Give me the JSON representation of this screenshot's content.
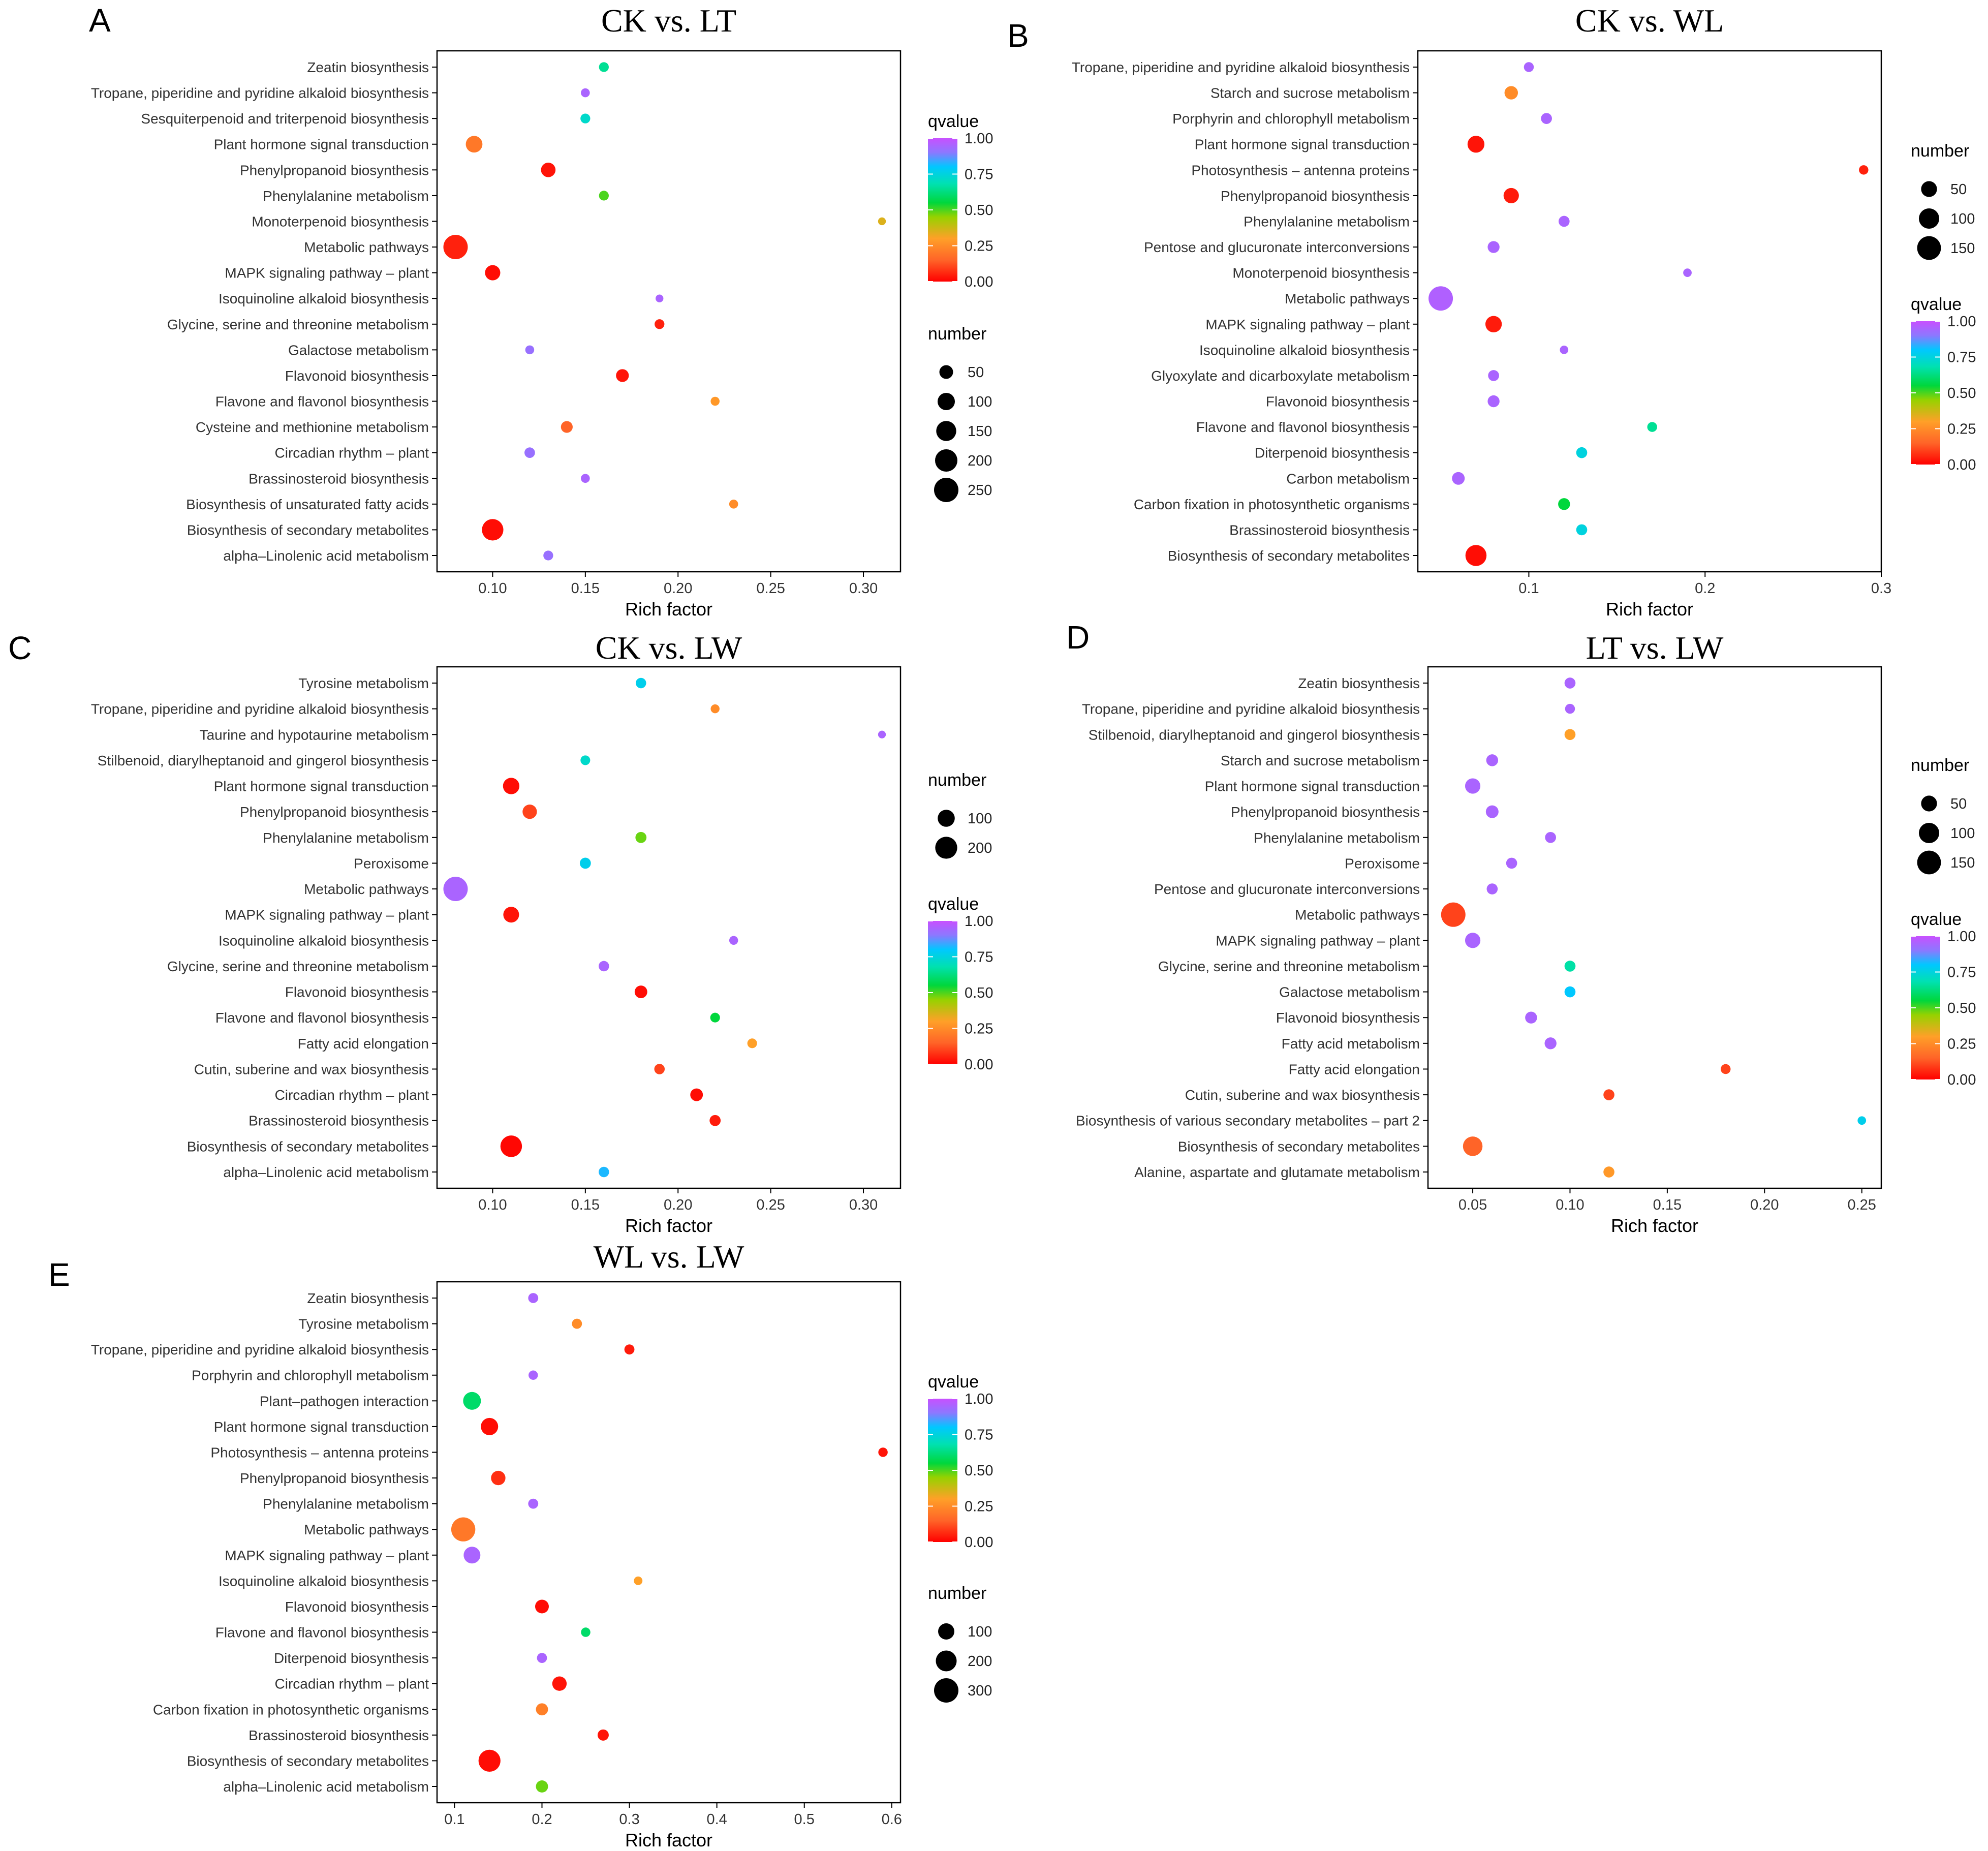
{
  "chart_data": [
    {
      "panel": "A",
      "title": "CK vs. LT",
      "type": "scatter",
      "xlabel": "Rich factor",
      "xlim": [
        0.07,
        0.32
      ],
      "xticks": [
        "0.10",
        "0.15",
        "0.20",
        "0.25",
        "0.30"
      ],
      "xtick_values": [
        0.1,
        0.15,
        0.2,
        0.25,
        0.3
      ],
      "categories": [
        "Zeatin biosynthesis",
        "Tropane, piperidine and pyridine alkaloid biosynthesis",
        "Sesquiterpenoid and triterpenoid biosynthesis",
        "Plant hormone signal transduction",
        "Phenylpropanoid biosynthesis",
        "Phenylalanine metabolism",
        "Monoterpenoid biosynthesis",
        "Metabolic pathways",
        "MAPK signaling pathway – plant",
        "Isoquinoline alkaloid biosynthesis",
        "Glycine, serine and threonine metabolism",
        "Galactose metabolism",
        "Flavonoid biosynthesis",
        "Flavone and flavonol biosynthesis",
        "Cysteine and methionine metabolism",
        "Circadian rhythm – plant",
        "Brassinosteroid biosynthesis",
        "Biosynthesis of unsaturated fatty acids",
        "Biosynthesis of secondary metabolites",
        "alpha–Linolenic acid metabolism"
      ],
      "points": [
        {
          "x": 0.16,
          "number": 15,
          "qvalue": 0.65
        },
        {
          "x": 0.15,
          "number": 10,
          "qvalue": 0.95
        },
        {
          "x": 0.15,
          "number": 15,
          "qvalue": 0.72
        },
        {
          "x": 0.09,
          "number": 90,
          "qvalue": 0.2
        },
        {
          "x": 0.13,
          "number": 60,
          "qvalue": 0.03
        },
        {
          "x": 0.16,
          "number": 15,
          "qvalue": 0.5
        },
        {
          "x": 0.31,
          "number": 5,
          "qvalue": 0.35
        },
        {
          "x": 0.08,
          "number": 250,
          "qvalue": 0.05
        },
        {
          "x": 0.1,
          "number": 70,
          "qvalue": 0.02
        },
        {
          "x": 0.19,
          "number": 5,
          "qvalue": 0.95
        },
        {
          "x": 0.19,
          "number": 15,
          "qvalue": 0.05
        },
        {
          "x": 0.12,
          "number": 10,
          "qvalue": 0.92
        },
        {
          "x": 0.17,
          "number": 40,
          "qvalue": 0.03
        },
        {
          "x": 0.22,
          "number": 10,
          "qvalue": 0.28
        },
        {
          "x": 0.14,
          "number": 30,
          "qvalue": 0.15
        },
        {
          "x": 0.12,
          "number": 20,
          "qvalue": 0.92
        },
        {
          "x": 0.15,
          "number": 10,
          "qvalue": 0.95
        },
        {
          "x": 0.23,
          "number": 10,
          "qvalue": 0.25
        },
        {
          "x": 0.1,
          "number": 180,
          "qvalue": 0.02
        },
        {
          "x": 0.13,
          "number": 15,
          "qvalue": 0.92
        }
      ],
      "legends": [
        {
          "kind": "color",
          "title": "qvalue",
          "ticks": [
            "1.00",
            "0.75",
            "0.50",
            "0.25",
            "0.00"
          ]
        },
        {
          "kind": "size",
          "title": "number",
          "ticks": [
            "50",
            "100",
            "150",
            "200",
            "250"
          ],
          "values": [
            50,
            100,
            150,
            200,
            250
          ]
        }
      ]
    },
    {
      "panel": "B",
      "title": "CK vs. WL",
      "type": "scatter",
      "xlabel": "Rich factor",
      "xlim": [
        0.037,
        0.3
      ],
      "xticks": [
        "0.1",
        "0.2",
        "0.3"
      ],
      "xtick_values": [
        0.1,
        0.2,
        0.3
      ],
      "categories": [
        "Tropane, piperidine and pyridine alkaloid biosynthesis",
        "Starch and sucrose metabolism",
        "Porphyrin and chlorophyll metabolism",
        "Plant hormone signal transduction",
        "Photosynthesis – antenna proteins",
        "Phenylpropanoid biosynthesis",
        "Phenylalanine metabolism",
        "Pentose and glucuronate interconversions",
        "Monoterpenoid biosynthesis",
        "Metabolic pathways",
        "MAPK signaling pathway – plant",
        "Isoquinoline alkaloid biosynthesis",
        "Glyoxylate and dicarboxylate metabolism",
        "Flavonoid biosynthesis",
        "Flavone and flavonol biosynthesis",
        "Diterpenoid biosynthesis",
        "Carbon metabolism",
        "Carbon fixation in photosynthetic organisms",
        "Brassinosteroid biosynthesis",
        "Biosynthesis of secondary metabolites"
      ],
      "points": [
        {
          "x": 0.1,
          "number": 10,
          "qvalue": 0.95
        },
        {
          "x": 0.09,
          "number": 30,
          "qvalue": 0.25
        },
        {
          "x": 0.11,
          "number": 15,
          "qvalue": 0.95
        },
        {
          "x": 0.07,
          "number": 60,
          "qvalue": 0.03
        },
        {
          "x": 0.29,
          "number": 8,
          "qvalue": 0.05
        },
        {
          "x": 0.09,
          "number": 45,
          "qvalue": 0.04
        },
        {
          "x": 0.12,
          "number": 15,
          "qvalue": 0.95
        },
        {
          "x": 0.08,
          "number": 20,
          "qvalue": 0.95
        },
        {
          "x": 0.19,
          "number": 5,
          "qvalue": 0.95
        },
        {
          "x": 0.05,
          "number": 160,
          "qvalue": 0.96
        },
        {
          "x": 0.08,
          "number": 55,
          "qvalue": 0.04
        },
        {
          "x": 0.12,
          "number": 5,
          "qvalue": 0.95
        },
        {
          "x": 0.08,
          "number": 15,
          "qvalue": 0.95
        },
        {
          "x": 0.08,
          "number": 20,
          "qvalue": 0.95
        },
        {
          "x": 0.17,
          "number": 10,
          "qvalue": 0.65
        },
        {
          "x": 0.13,
          "number": 15,
          "qvalue": 0.75
        },
        {
          "x": 0.06,
          "number": 25,
          "qvalue": 0.95
        },
        {
          "x": 0.12,
          "number": 20,
          "qvalue": 0.55
        },
        {
          "x": 0.13,
          "number": 15,
          "qvalue": 0.75
        },
        {
          "x": 0.07,
          "number": 110,
          "qvalue": 0.02
        }
      ],
      "legends": [
        {
          "kind": "size",
          "title": "number",
          "ticks": [
            "50",
            "100",
            "150"
          ],
          "values": [
            50,
            100,
            150
          ]
        },
        {
          "kind": "color",
          "title": "qvalue",
          "ticks": [
            "1.00",
            "0.75",
            "0.50",
            "0.25",
            "0.00"
          ]
        }
      ]
    },
    {
      "panel": "C",
      "title": "CK vs. LW",
      "type": "scatter",
      "xlabel": "Rich factor",
      "xlim": [
        0.07,
        0.32
      ],
      "xticks": [
        "0.10",
        "0.15",
        "0.20",
        "0.25",
        "0.30"
      ],
      "xtick_values": [
        0.1,
        0.15,
        0.2,
        0.25,
        0.3
      ],
      "categories": [
        "Tyrosine metabolism",
        "Tropane, piperidine and pyridine alkaloid biosynthesis",
        "Taurine and hypotaurine metabolism",
        "Stilbenoid, diarylheptanoid and gingerol biosynthesis",
        "Plant hormone signal transduction",
        "Phenylpropanoid biosynthesis",
        "Phenylalanine metabolism",
        "Peroxisome",
        "Metabolic pathways",
        "MAPK signaling pathway – plant",
        "Isoquinoline alkaloid biosynthesis",
        "Glycine, serine and threonine metabolism",
        "Flavonoid biosynthesis",
        "Flavone and flavonol biosynthesis",
        "Fatty acid elongation",
        "Cutin, suberine and wax biosynthesis",
        "Circadian rhythm – plant",
        "Brassinosteroid biosynthesis",
        "Biosynthesis of secondary metabolites",
        "alpha–Linolenic acid metabolism"
      ],
      "points": [
        {
          "x": 0.18,
          "number": 20,
          "qvalue": 0.77
        },
        {
          "x": 0.22,
          "number": 10,
          "qvalue": 0.25
        },
        {
          "x": 0.31,
          "number": 5,
          "qvalue": 0.95
        },
        {
          "x": 0.15,
          "number": 15,
          "qvalue": 0.72
        },
        {
          "x": 0.11,
          "number": 90,
          "qvalue": 0.02
        },
        {
          "x": 0.12,
          "number": 60,
          "qvalue": 0.1
        },
        {
          "x": 0.18,
          "number": 25,
          "qvalue": 0.48
        },
        {
          "x": 0.15,
          "number": 25,
          "qvalue": 0.77
        },
        {
          "x": 0.08,
          "number": 260,
          "qvalue": 0.95
        },
        {
          "x": 0.11,
          "number": 80,
          "qvalue": 0.03
        },
        {
          "x": 0.23,
          "number": 10,
          "qvalue": 0.95
        },
        {
          "x": 0.16,
          "number": 20,
          "qvalue": 0.95
        },
        {
          "x": 0.18,
          "number": 40,
          "qvalue": 0.02
        },
        {
          "x": 0.22,
          "number": 15,
          "qvalue": 0.55
        },
        {
          "x": 0.24,
          "number": 15,
          "qvalue": 0.3
        },
        {
          "x": 0.19,
          "number": 20,
          "qvalue": 0.1
        },
        {
          "x": 0.21,
          "number": 40,
          "qvalue": 0.02
        },
        {
          "x": 0.22,
          "number": 25,
          "qvalue": 0.04
        },
        {
          "x": 0.11,
          "number": 190,
          "qvalue": 0.01
        },
        {
          "x": 0.16,
          "number": 20,
          "qvalue": 0.82
        }
      ],
      "legends": [
        {
          "kind": "size",
          "title": "number",
          "ticks": [
            "100",
            "200"
          ],
          "values": [
            100,
            200
          ]
        },
        {
          "kind": "color",
          "title": "qvalue",
          "ticks": [
            "1.00",
            "0.75",
            "0.50",
            "0.25",
            "0.00"
          ]
        }
      ]
    },
    {
      "panel": "D",
      "title": "LT vs. LW",
      "type": "scatter",
      "xlabel": "Rich factor",
      "xlim": [
        0.027,
        0.26
      ],
      "xticks": [
        "0.05",
        "0.10",
        "0.15",
        "0.20",
        "0.25"
      ],
      "xtick_values": [
        0.05,
        0.1,
        0.15,
        0.2,
        0.25
      ],
      "categories": [
        "Zeatin biosynthesis",
        "Tropane, piperidine and pyridine alkaloid biosynthesis",
        "Stilbenoid, diarylheptanoid and gingerol biosynthesis",
        "Starch and sucrose metabolism",
        "Plant hormone signal transduction",
        "Phenylpropanoid biosynthesis",
        "Phenylalanine metabolism",
        "Peroxisome",
        "Pentose and glucuronate interconversions",
        "Metabolic pathways",
        "MAPK signaling pathway – plant",
        "Glycine, serine and threonine metabolism",
        "Galactose metabolism",
        "Flavonoid biosynthesis",
        "Fatty acid metabolism",
        "Fatty acid elongation",
        "Cutin, suberine and wax biosynthesis",
        "Biosynthesis of various secondary metabolites – part 2",
        "Biosynthesis of secondary metabolites",
        "Alanine, aspartate and glutamate metabolism"
      ],
      "points": [
        {
          "x": 0.1,
          "number": 15,
          "qvalue": 0.95
        },
        {
          "x": 0.1,
          "number": 10,
          "qvalue": 0.95
        },
        {
          "x": 0.1,
          "number": 15,
          "qvalue": 0.3
        },
        {
          "x": 0.06,
          "number": 20,
          "qvalue": 0.95
        },
        {
          "x": 0.05,
          "number": 45,
          "qvalue": 0.95
        },
        {
          "x": 0.06,
          "number": 25,
          "qvalue": 0.95
        },
        {
          "x": 0.09,
          "number": 15,
          "qvalue": 0.95
        },
        {
          "x": 0.07,
          "number": 15,
          "qvalue": 0.95
        },
        {
          "x": 0.06,
          "number": 15,
          "qvalue": 0.95
        },
        {
          "x": 0.04,
          "number": 160,
          "qvalue": 0.1
        },
        {
          "x": 0.05,
          "number": 45,
          "qvalue": 0.95
        },
        {
          "x": 0.1,
          "number": 15,
          "qvalue": 0.67
        },
        {
          "x": 0.1,
          "number": 15,
          "qvalue": 0.8
        },
        {
          "x": 0.08,
          "number": 20,
          "qvalue": 0.95
        },
        {
          "x": 0.09,
          "number": 20,
          "qvalue": 0.95
        },
        {
          "x": 0.18,
          "number": 10,
          "qvalue": 0.1
        },
        {
          "x": 0.12,
          "number": 15,
          "qvalue": 0.1
        },
        {
          "x": 0.25,
          "number": 5,
          "qvalue": 0.77
        },
        {
          "x": 0.05,
          "number": 90,
          "qvalue": 0.15
        },
        {
          "x": 0.12,
          "number": 15,
          "qvalue": 0.28
        }
      ],
      "legends": [
        {
          "kind": "size",
          "title": "number",
          "ticks": [
            "50",
            "100",
            "150"
          ],
          "values": [
            50,
            100,
            150
          ]
        },
        {
          "kind": "color",
          "title": "qvalue",
          "ticks": [
            "1.00",
            "0.75",
            "0.50",
            "0.25",
            "0.00"
          ]
        }
      ]
    },
    {
      "panel": "E",
      "title": "WL vs. LW",
      "type": "scatter",
      "xlabel": "Rich factor",
      "xlim": [
        0.08,
        0.61
      ],
      "xticks": [
        "0.1",
        "0.2",
        "0.3",
        "0.4",
        "0.5",
        "0.6"
      ],
      "xtick_values": [
        0.1,
        0.2,
        0.3,
        0.4,
        0.5,
        0.6
      ],
      "categories": [
        "Zeatin biosynthesis",
        "Tyrosine metabolism",
        "Tropane, piperidine and pyridine alkaloid biosynthesis",
        "Porphyrin and chlorophyll metabolism",
        "Plant–pathogen interaction",
        "Plant hormone signal transduction",
        "Photosynthesis – antenna proteins",
        "Phenylpropanoid biosynthesis",
        "Phenylalanine metabolism",
        "Metabolic pathways",
        "MAPK signaling pathway – plant",
        "Isoquinoline alkaloid biosynthesis",
        "Flavonoid biosynthesis",
        "Flavone and flavonol biosynthesis",
        "Diterpenoid biosynthesis",
        "Circadian rhythm – plant",
        "Carbon fixation in photosynthetic organisms",
        "Brassinosteroid biosynthesis",
        "Biosynthesis of secondary metabolites",
        "alpha–Linolenic acid metabolism"
      ],
      "points": [
        {
          "x": 0.19,
          "number": 20,
          "qvalue": 0.95
        },
        {
          "x": 0.24,
          "number": 20,
          "qvalue": 0.25
        },
        {
          "x": 0.3,
          "number": 20,
          "qvalue": 0.04
        },
        {
          "x": 0.19,
          "number": 15,
          "qvalue": 0.95
        },
        {
          "x": 0.12,
          "number": 130,
          "qvalue": 0.6
        },
        {
          "x": 0.14,
          "number": 120,
          "qvalue": 0.02
        },
        {
          "x": 0.59,
          "number": 15,
          "qvalue": 0.03
        },
        {
          "x": 0.15,
          "number": 70,
          "qvalue": 0.07
        },
        {
          "x": 0.19,
          "number": 20,
          "qvalue": 0.95
        },
        {
          "x": 0.11,
          "number": 290,
          "qvalue": 0.2
        },
        {
          "x": 0.12,
          "number": 110,
          "qvalue": 0.95
        },
        {
          "x": 0.31,
          "number": 10,
          "qvalue": 0.3
        },
        {
          "x": 0.2,
          "number": 60,
          "qvalue": 0.02
        },
        {
          "x": 0.25,
          "number": 15,
          "qvalue": 0.6
        },
        {
          "x": 0.2,
          "number": 20,
          "qvalue": 0.95
        },
        {
          "x": 0.22,
          "number": 70,
          "qvalue": 0.03
        },
        {
          "x": 0.2,
          "number": 40,
          "qvalue": 0.22
        },
        {
          "x": 0.27,
          "number": 30,
          "qvalue": 0.03
        },
        {
          "x": 0.14,
          "number": 230,
          "qvalue": 0.02
        },
        {
          "x": 0.2,
          "number": 40,
          "qvalue": 0.48
        }
      ],
      "legends": [
        {
          "kind": "color",
          "title": "qvalue",
          "ticks": [
            "1.00",
            "0.75",
            "0.50",
            "0.25",
            "0.00"
          ]
        },
        {
          "kind": "size",
          "title": "number",
          "ticks": [
            "100",
            "200",
            "300"
          ],
          "values": [
            100,
            200,
            300
          ]
        }
      ]
    }
  ]
}
